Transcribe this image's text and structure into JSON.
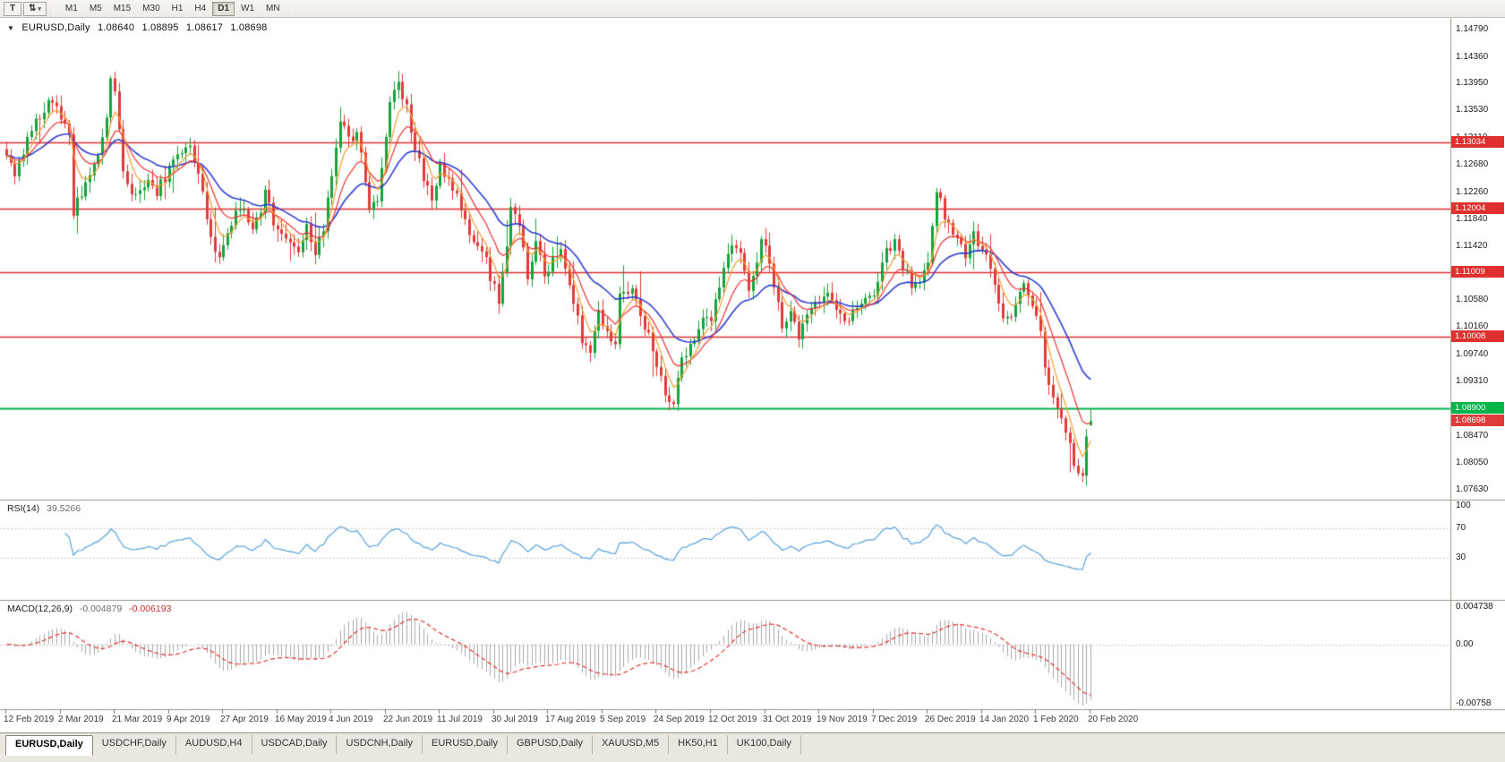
{
  "toolbar": {
    "text_tool_label": "T",
    "cursor_tool_icon": "⇅",
    "dropdown_caret": "▾",
    "timeframes": [
      "M1",
      "M5",
      "M15",
      "M30",
      "H1",
      "H4",
      "D1",
      "W1",
      "MN"
    ],
    "active_timeframe": "D1"
  },
  "chart": {
    "collapse_arrow": "▼",
    "symbol": "EURUSD,Daily",
    "ohlc": {
      "open": "1.08640",
      "high": "1.08895",
      "low": "1.08617",
      "close": "1.08698"
    },
    "price_axis_ticks": [
      "1.14790",
      "1.14360",
      "1.13950",
      "1.13530",
      "1.13110",
      "1.12680",
      "1.12260",
      "1.11840",
      "1.11420",
      "1.11000",
      "1.10580",
      "1.10160",
      "1.09740",
      "1.09310",
      "1.08890",
      "1.08470",
      "1.08050",
      "1.07630"
    ],
    "resistance_lines": [
      {
        "price": 1.13034,
        "label": "1.13034"
      },
      {
        "price": 1.12004,
        "label": "1.12004"
      },
      {
        "price": 1.11009,
        "label": "1.11009"
      },
      {
        "price": 1.10008,
        "label": "1.10008"
      }
    ],
    "support_line": {
      "price": 1.089,
      "label": "1.08900"
    },
    "current_price": {
      "price": 1.08698,
      "label": "1.08698"
    },
    "date_labels": [
      "12 Feb 2019",
      "2 Mar 2019",
      "21 Mar 2019",
      "9 Apr 2019",
      "27 Apr 2019",
      "16 May 2019",
      "4 Jun 2019",
      "22 Jun 2019",
      "11 Jul 2019",
      "30 Jul 2019",
      "17 Aug 2019",
      "5 Sep 2019",
      "24 Sep 2019",
      "12 Oct 2019",
      "31 Oct 2019",
      "19 Nov 2019",
      "7 Dec 2019",
      "26 Dec 2019",
      "14 Jan 2020",
      "1 Feb 2020",
      "20 Feb 2020"
    ],
    "bars_per_label": 13,
    "ma_periods": {
      "fast": 5,
      "mid": 11,
      "slow": 24
    },
    "colors": {
      "up": "#17a23b",
      "down": "#e03b3b",
      "ma_fast": "#f0a030",
      "ma_mid": "#ee3232",
      "ma_slow": "#2f3ed0",
      "resistance": "#e02f2f",
      "support": "#00b44a",
      "current": "#e03b3b",
      "separator": "#9c9890",
      "axis_text": "#1c1c1c"
    },
    "price_path": [
      [
        0,
        1.1278
      ],
      [
        2,
        1.1252
      ],
      [
        5,
        1.1312
      ],
      [
        8,
        1.134
      ],
      [
        11,
        1.137
      ],
      [
        13,
        1.1342
      ],
      [
        15,
        1.131
      ],
      [
        16,
        1.1195
      ],
      [
        18,
        1.1225
      ],
      [
        21,
        1.1262
      ],
      [
        24,
        1.1338
      ],
      [
        25,
        1.1412
      ],
      [
        26,
        1.1378
      ],
      [
        28,
        1.1262
      ],
      [
        30,
        1.1218
      ],
      [
        33,
        1.1242
      ],
      [
        36,
        1.1226
      ],
      [
        39,
        1.1262
      ],
      [
        42,
        1.1288
      ],
      [
        44,
        1.1297
      ],
      [
        47,
        1.123
      ],
      [
        49,
        1.1156
      ],
      [
        51,
        1.1115
      ],
      [
        54,
        1.118
      ],
      [
        57,
        1.1205
      ],
      [
        59,
        1.1162
      ],
      [
        62,
        1.1224
      ],
      [
        64,
        1.118
      ],
      [
        67,
        1.115
      ],
      [
        70,
        1.1128
      ],
      [
        72,
        1.118
      ],
      [
        74,
        1.113
      ],
      [
        76,
        1.1168
      ],
      [
        78,
        1.125
      ],
      [
        80,
        1.1334
      ],
      [
        82,
        1.1308
      ],
      [
        84,
        1.1322
      ],
      [
        87,
        1.1193
      ],
      [
        89,
        1.1215
      ],
      [
        91,
        1.132
      ],
      [
        92,
        1.1367
      ],
      [
        94,
        1.1388
      ],
      [
        96,
        1.136
      ],
      [
        98,
        1.1288
      ],
      [
        100,
        1.125
      ],
      [
        102,
        1.1208
      ],
      [
        104,
        1.127
      ],
      [
        106,
        1.1248
      ],
      [
        108,
        1.1215
      ],
      [
        110,
        1.118
      ],
      [
        113,
        1.1145
      ],
      [
        115,
        1.112
      ],
      [
        117,
        1.1075
      ],
      [
        118,
        1.1045
      ],
      [
        121,
        1.12
      ],
      [
        123,
        1.117
      ],
      [
        125,
        1.11
      ],
      [
        127,
        1.114
      ],
      [
        129,
        1.1098
      ],
      [
        131,
        1.112
      ],
      [
        133,
        1.1145
      ],
      [
        135,
        1.108
      ],
      [
        137,
        1.104
      ],
      [
        138,
        1.0989
      ],
      [
        140,
        1.0975
      ],
      [
        142,
        1.1035
      ],
      [
        144,
        1.1
      ],
      [
        146,
        1.0998
      ],
      [
        147,
        1.106
      ],
      [
        150,
        1.1072
      ],
      [
        152,
        1.104
      ],
      [
        154,
        1.1
      ],
      [
        156,
        1.096
      ],
      [
        158,
        1.0905
      ],
      [
        160,
        1.0896
      ],
      [
        162,
        1.096
      ],
      [
        164,
        1.099
      ],
      [
        166,
        1.1005
      ],
      [
        167,
        1.104
      ],
      [
        169,
        1.1025
      ],
      [
        171,
        1.1075
      ],
      [
        174,
        1.115
      ],
      [
        176,
        1.113
      ],
      [
        178,
        1.108
      ],
      [
        180,
        1.111
      ],
      [
        181,
        1.1152
      ],
      [
        183,
        1.112
      ],
      [
        186,
        1.1017
      ],
      [
        188,
        1.1035
      ],
      [
        190,
        1.1005
      ],
      [
        192,
        1.1045
      ],
      [
        195,
        1.106
      ],
      [
        197,
        1.1078
      ],
      [
        199,
        1.104
      ],
      [
        201,
        1.1018
      ],
      [
        203,
        1.104
      ],
      [
        205,
        1.106
      ],
      [
        208,
        1.1056
      ],
      [
        210,
        1.112
      ],
      [
        213,
        1.1148
      ],
      [
        215,
        1.111
      ],
      [
        217,
        1.1085
      ],
      [
        219,
        1.1092
      ],
      [
        221,
        1.1118
      ],
      [
        223,
        1.123
      ],
      [
        224,
        1.1213
      ],
      [
        226,
        1.1172
      ],
      [
        228,
        1.116
      ],
      [
        230,
        1.1122
      ],
      [
        232,
        1.116
      ],
      [
        234,
        1.1137
      ],
      [
        236,
        1.1108
      ],
      [
        238,
        1.105
      ],
      [
        240,
        1.1023
      ],
      [
        242,
        1.106
      ],
      [
        244,
        1.1093
      ],
      [
        246,
        1.1048
      ],
      [
        248,
        1.1
      ],
      [
        249,
        1.0946
      ],
      [
        251,
        1.0915
      ],
      [
        253,
        1.087
      ],
      [
        255,
        1.0838
      ],
      [
        256,
        1.08
      ],
      [
        258,
        1.0783
      ],
      [
        259,
        1.0846
      ],
      [
        260,
        1.08698
      ]
    ]
  },
  "rsi": {
    "name": "RSI(14)",
    "value": "39.5266",
    "period": 14,
    "axis_labels": [
      "100",
      "70",
      "30"
    ],
    "axis_values": [
      100,
      70,
      30
    ],
    "level_lines": [
      70,
      30
    ],
    "color": "#56a2dd"
  },
  "macd": {
    "name": "MACD(12,26,9)",
    "main_value": "-0.004879",
    "signal_value": "-0.006193",
    "fast": 12,
    "slow": 26,
    "signal": 9,
    "axis_labels": [
      "0.004738",
      "0.00",
      "-0.00758"
    ],
    "axis_values": [
      0.004738,
      0,
      -0.00758
    ],
    "range": [
      -0.00758,
      0.004738
    ],
    "hist_color": "#a9a9a9",
    "signal_color": "#e03232"
  },
  "tabs": [
    {
      "label": "EURUSD,Daily",
      "active": true
    },
    {
      "label": "USDCHF,Daily",
      "active": false
    },
    {
      "label": "AUDUSD,H4",
      "active": false
    },
    {
      "label": "USDCAD,Daily",
      "active": false
    },
    {
      "label": "USDCNH,Daily",
      "active": false
    },
    {
      "label": "EURUSD,Daily",
      "active": false
    },
    {
      "label": "GBPUSD,Daily",
      "active": false
    },
    {
      "label": "XAUUSD,M5",
      "active": false
    },
    {
      "label": "HK50,H1",
      "active": false
    },
    {
      "label": "UK100,Daily",
      "active": false
    }
  ]
}
